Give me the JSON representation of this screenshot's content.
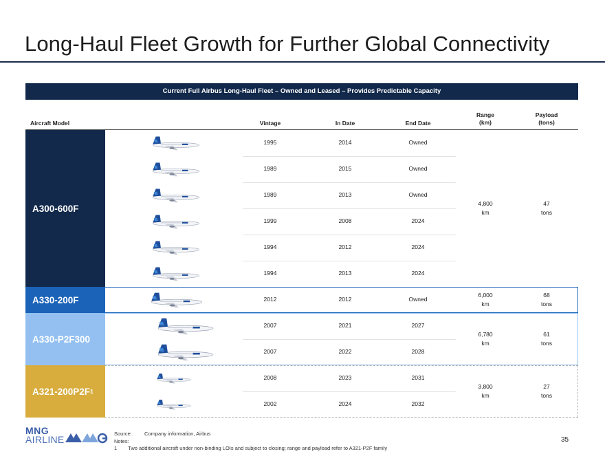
{
  "title": "Long-Haul Fleet Growth for Further Global Connectivity",
  "banner": "Current Full Airbus Long-Haul Fleet – Owned and Leased – Provides Predictable Capacity",
  "headers": {
    "aircraft_model": "Aircraft Model",
    "vintage": "Vintage",
    "in_date": "In Date",
    "end_date": "End Date",
    "range": "Range",
    "range_unit": "(km)",
    "payload": "Payload",
    "payload_unit": "(tons)"
  },
  "groups": [
    {
      "model": "A300-600F",
      "color": "#12294b",
      "range_value": "4,800",
      "range_unit": "km",
      "payload_value": "47",
      "payload_unit": "tons",
      "rows": [
        {
          "vintage": "1995",
          "in_date": "2014",
          "end_date": "Owned"
        },
        {
          "vintage": "1989",
          "in_date": "2015",
          "end_date": "Owned"
        },
        {
          "vintage": "1989",
          "in_date": "2013",
          "end_date": "Owned"
        },
        {
          "vintage": "1999",
          "in_date": "2008",
          "end_date": "2024"
        },
        {
          "vintage": "1994",
          "in_date": "2012",
          "end_date": "2024"
        },
        {
          "vintage": "1994",
          "in_date": "2013",
          "end_date": "2024"
        }
      ]
    },
    {
      "model": "A330-200F",
      "color": "#1a63b8",
      "range_value": "6,000",
      "range_unit": "km",
      "payload_value": "68",
      "payload_unit": "tons",
      "rows": [
        {
          "vintage": "2012",
          "in_date": "2012",
          "end_date": "Owned"
        }
      ]
    },
    {
      "model": "A330-P2F300",
      "color": "#93c0f1",
      "range_value": "6,780",
      "range_unit": "km",
      "payload_value": "61",
      "payload_unit": "tons",
      "rows": [
        {
          "vintage": "2007",
          "in_date": "2021",
          "end_date": "2027"
        },
        {
          "vintage": "2007",
          "in_date": "2022",
          "end_date": "2028"
        }
      ]
    },
    {
      "model": "A321-200P2F",
      "footnote_mark": "1",
      "color": "#d8ad3e",
      "range_value": "3,800",
      "range_unit": "km",
      "payload_value": "27",
      "payload_unit": "tons",
      "rows": [
        {
          "vintage": "2008",
          "in_date": "2023",
          "end_date": "2031"
        },
        {
          "vintage": "2002",
          "in_date": "2024",
          "end_date": "2032"
        }
      ]
    }
  ],
  "footer": {
    "source_label": "Source:",
    "source_text": "Company information, Airbus",
    "notes_label": "Notes:",
    "note_number": "1",
    "note_text": "Two additional aircraft under non-binding LOIs and subject to closing; range and payload refer to A321-P2F family"
  },
  "logo": {
    "line1": "MNG",
    "line2": "AIRLINES",
    "mark_icon": "mng-logo-mark"
  },
  "page_number": "35",
  "plane_icon": "airbus-freighter-plane-icon"
}
